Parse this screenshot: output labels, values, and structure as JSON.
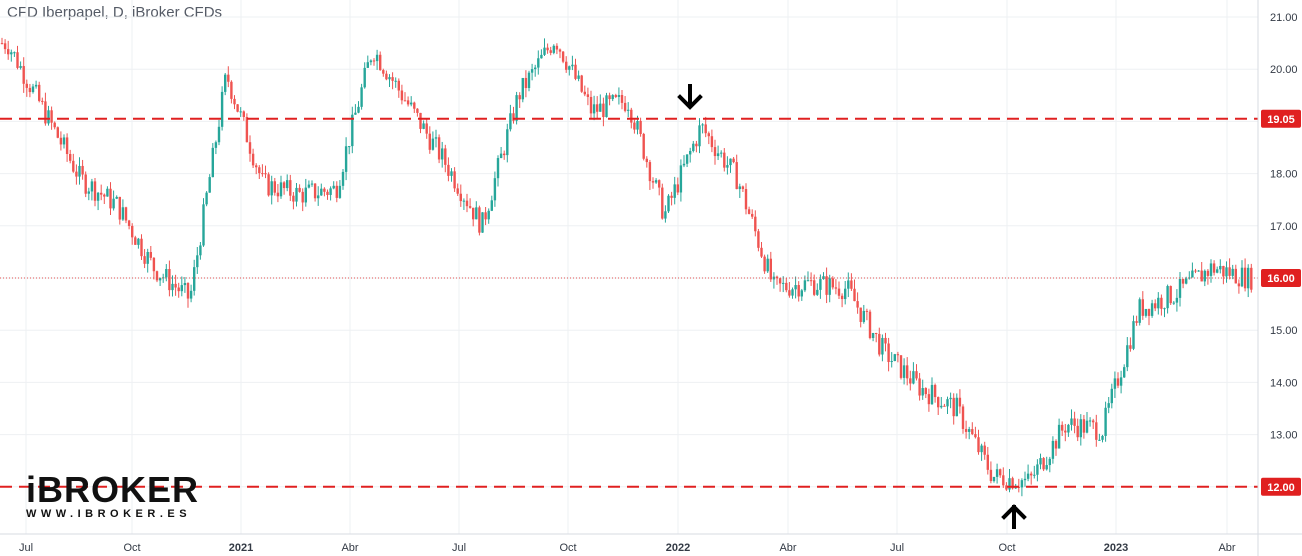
{
  "title": "CFD Iberpapel, D, iBroker CFDs",
  "logo": {
    "main": "iBROKER",
    "sub": "WWW.IBROKER.ES"
  },
  "colors": {
    "up": "#26a69a",
    "down": "#ef5350",
    "level_line": "#e02020",
    "last_price_line": "#e05050",
    "grid": "#eef0f3",
    "axis_text": "#333a45"
  },
  "chart_data": {
    "type": "candlestick",
    "title": "CFD Iberpapel, D, iBroker CFDs",
    "ylim": [
      11.3,
      21.3
    ],
    "y_ticks": [
      "13.00",
      "14.00",
      "15.00",
      "17.00",
      "18.00",
      "20.00",
      "21.00"
    ],
    "x_ticks": [
      "Jul",
      "Oct",
      "2021",
      "Abr",
      "Jul",
      "Oct",
      "2022",
      "Abr",
      "Jul",
      "Oct",
      "2023",
      "Abr"
    ],
    "x_ticks_bold": [
      "2021",
      "2022",
      "2023"
    ],
    "grid": true,
    "horizontal_levels": [
      {
        "value": 19.05,
        "label": "19.05",
        "style": "dashed"
      },
      {
        "value": 12.0,
        "label": "12.00",
        "style": "dashed"
      }
    ],
    "last_price": {
      "value": 16.0,
      "label": "16.00",
      "style": "dotted"
    },
    "annotations": [
      {
        "type": "arrow-down",
        "date": "2022-01",
        "value": 19.3
      },
      {
        "type": "arrow-up",
        "date": "2022-10",
        "value": 11.7
      }
    ],
    "series": [
      {
        "date": "2020-06",
        "close": 20.5
      },
      {
        "date": "2020-07",
        "close": 19.2
      },
      {
        "date": "2020-08",
        "close": 17.9
      },
      {
        "date": "2020-09",
        "close": 17.4
      },
      {
        "date": "2020-10",
        "close": 16.2
      },
      {
        "date": "2020-11",
        "close": 15.6
      },
      {
        "date": "2020-12",
        "close": 19.9
      },
      {
        "date": "2021-01",
        "close": 17.8
      },
      {
        "date": "2021-02",
        "close": 17.6
      },
      {
        "date": "2021-03",
        "close": 17.7
      },
      {
        "date": "2021-04",
        "close": 20.4
      },
      {
        "date": "2021-05",
        "close": 19.3
      },
      {
        "date": "2021-06",
        "close": 18.2
      },
      {
        "date": "2021-07",
        "close": 17.0
      },
      {
        "date": "2021-08",
        "close": 19.5
      },
      {
        "date": "2021-09",
        "close": 20.6
      },
      {
        "date": "2021-10",
        "close": 19.2
      },
      {
        "date": "2021-11",
        "close": 19.4
      },
      {
        "date": "2021-12",
        "close": 17.2
      },
      {
        "date": "2022-01",
        "close": 18.9
      },
      {
        "date": "2022-02",
        "close": 17.9
      },
      {
        "date": "2022-03",
        "close": 15.8
      },
      {
        "date": "2022-04",
        "close": 15.9
      },
      {
        "date": "2022-05",
        "close": 15.8
      },
      {
        "date": "2022-06",
        "close": 14.6
      },
      {
        "date": "2022-07",
        "close": 13.9
      },
      {
        "date": "2022-08",
        "close": 13.5
      },
      {
        "date": "2022-09",
        "close": 12.2
      },
      {
        "date": "2022-10",
        "close": 12.1
      },
      {
        "date": "2022-11",
        "close": 13.2
      },
      {
        "date": "2022-12",
        "close": 13.1
      },
      {
        "date": "2023-01",
        "close": 15.4
      },
      {
        "date": "2023-02",
        "close": 15.7
      },
      {
        "date": "2023-03",
        "close": 16.2
      },
      {
        "date": "2023-04",
        "close": 16.0
      }
    ]
  }
}
